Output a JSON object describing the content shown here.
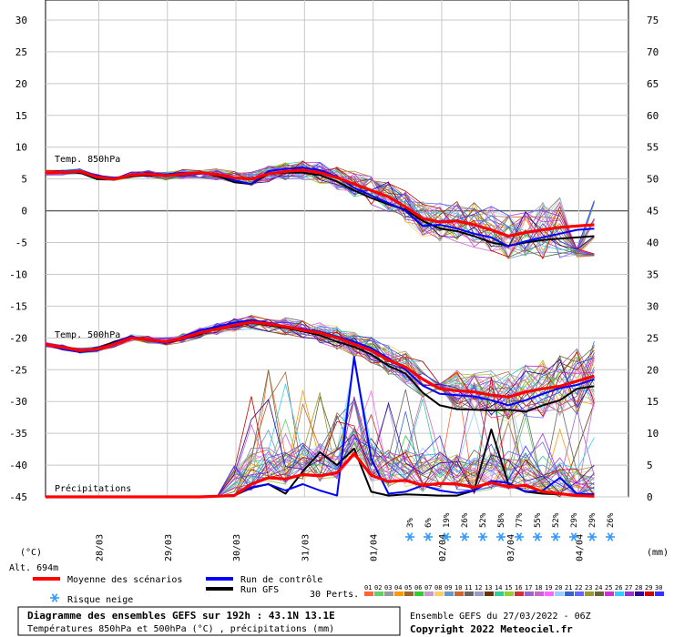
{
  "chart_data": {
    "type": "line",
    "title": "Diagramme des ensembles GEFS sur 192h : 43.1N 13.1E",
    "subtitle": "Températures 850hPa et 500hPa (°C) , précipitations (mm)",
    "left_axis": {
      "unit": "(°C)",
      "range": [
        -45,
        30
      ],
      "ticks": [
        30,
        25,
        20,
        15,
        10,
        5,
        0,
        -5,
        -10,
        -15,
        -20,
        -25,
        -30,
        -35,
        -40,
        -45
      ]
    },
    "right_axis": {
      "unit": "(mm)",
      "range": [
        0,
        75
      ],
      "ticks": [
        75,
        70,
        65,
        60,
        55,
        50,
        45,
        40,
        35,
        30,
        25,
        20,
        15,
        10,
        5,
        0
      ]
    },
    "altitude_label": "Alt. 694m",
    "x_labels": [
      "28/03",
      "29/03",
      "30/03",
      "31/03",
      "01/04",
      "02/04",
      "03/04",
      "04/04"
    ],
    "panel_labels": {
      "t850": "Temp. 850hPa",
      "t500": "Temp. 500hPa",
      "precip": "Précipitations"
    },
    "x_steps": [
      0,
      6,
      12,
      18,
      24,
      30,
      36,
      42,
      48,
      54,
      60,
      66,
      72,
      78,
      84,
      90,
      96,
      102,
      108,
      114,
      120,
      126,
      132,
      138,
      144,
      150,
      156,
      162,
      168,
      174,
      180,
      186,
      192
    ],
    "series": [
      {
        "name": "Moyenne des scénarios",
        "key": "t850_mean",
        "color": "#ff0000",
        "values": [
          6,
          6,
          6.2,
          5.3,
          5.0,
          5.6,
          5.8,
          5.5,
          5.8,
          6.0,
          5.7,
          5.2,
          5.0,
          5.8,
          6.2,
          6.4,
          6.0,
          5.2,
          4.2,
          3.2,
          2.2,
          0.6,
          -1.2,
          -1.8,
          -1.6,
          -2.2,
          -3.0,
          -4.0,
          -3.4,
          -3.0,
          -2.6,
          -2.4,
          -2.2
        ]
      },
      {
        "name": "Run de contrôle",
        "key": "t850_ctrl",
        "color": "#0000ff",
        "values": [
          6,
          6,
          6.2,
          5.5,
          5.2,
          5.5,
          5.9,
          5.7,
          6.0,
          5.9,
          5.8,
          4.8,
          4.2,
          6.2,
          6.6,
          6.8,
          6.4,
          5.4,
          3.6,
          2.4,
          1.2,
          0.0,
          -2.4,
          -2.2,
          -2.8,
          -3.6,
          -4.2,
          -5.6,
          -4.8,
          -4.2,
          -3.6,
          -3.0,
          -2.8
        ]
      },
      {
        "name": "Run GFS",
        "key": "t850_gfs",
        "color": "#000000",
        "values": [
          6,
          6,
          6.0,
          5.0,
          5.0,
          5.4,
          5.6,
          5.5,
          5.9,
          6.0,
          5.5,
          4.5,
          4.2,
          5.8,
          6.0,
          6.0,
          5.6,
          4.6,
          3.2,
          2.0,
          1.0,
          0.2,
          -1.6,
          -2.8,
          -3.2,
          -4.0,
          -5.0,
          -5.5,
          -5.0,
          -4.6,
          -4.4,
          -4.2,
          -4.0
        ]
      },
      {
        "name": "Moyenne des scénarios",
        "key": "t500_mean",
        "color": "#ff0000",
        "values": [
          -21,
          -21.5,
          -22,
          -21.8,
          -21,
          -20,
          -20.3,
          -20.6,
          -20.0,
          -19.2,
          -18.6,
          -18.0,
          -17.5,
          -17.8,
          -18.2,
          -18.8,
          -19.2,
          -20.0,
          -21.0,
          -22.0,
          -23.5,
          -24.6,
          -26.5,
          -28.0,
          -28.3,
          -28.5,
          -29.0,
          -29.3,
          -28.5,
          -28.0,
          -27.6,
          -26.8,
          -26.0
        ]
      },
      {
        "name": "Run de contrôle",
        "key": "t500_ctrl",
        "color": "#0000ff",
        "values": [
          -21,
          -21.8,
          -22.2,
          -22,
          -20.8,
          -19.8,
          -20.4,
          -20.8,
          -19.8,
          -18.8,
          -18.2,
          -17.6,
          -17.2,
          -17.6,
          -18.2,
          -18.6,
          -19.0,
          -19.8,
          -20.6,
          -21.6,
          -23.2,
          -25.0,
          -27.5,
          -28.8,
          -29.0,
          -29.2,
          -29.8,
          -30.6,
          -29.8,
          -28.8,
          -27.9,
          -27.4,
          -26.5
        ]
      },
      {
        "name": "Run GFS",
        "key": "t500_gfs",
        "color": "#000000",
        "values": [
          -21,
          -21.6,
          -22,
          -21.8,
          -20.6,
          -20.0,
          -20.2,
          -20.6,
          -20.0,
          -19.4,
          -18.4,
          -18.2,
          -17.6,
          -18.0,
          -18.4,
          -19.0,
          -19.6,
          -20.6,
          -21.4,
          -22.6,
          -24.4,
          -25.6,
          -28.6,
          -30.6,
          -31.2,
          -31.3,
          -31.4,
          -31.3,
          -31.6,
          -30.6,
          -29.8,
          -28.0,
          -27.6
        ]
      },
      {
        "name": "Moyenne des scénarios",
        "key": "precip_mean",
        "color": "#ff0000",
        "values": [
          0,
          0,
          0,
          0,
          0,
          0,
          0,
          0,
          0,
          0,
          0.1,
          0.2,
          2,
          3,
          2.8,
          3.5,
          3.3,
          3.8,
          6.8,
          3.4,
          2.4,
          2.6,
          1.8,
          2.1,
          2.0,
          1.5,
          2.2,
          1.6,
          1.8,
          0.8,
          0.5,
          0.2,
          0.1
        ]
      },
      {
        "name": "Run de contrôle",
        "key": "precip_ctrl",
        "color": "#0000ff",
        "values": [
          0,
          0,
          0,
          0,
          0,
          0,
          0,
          0,
          0,
          0,
          0.1,
          0.3,
          1.5,
          2.0,
          1.0,
          2.0,
          1.0,
          0.2,
          22.0,
          6.0,
          0.5,
          0.8,
          1.8,
          1.0,
          0.6,
          1.0,
          2.5,
          2.2,
          0.8,
          1.0,
          3.0,
          0.5,
          0.4
        ]
      },
      {
        "name": "Run GFS",
        "key": "precip_gfs",
        "color": "#000000",
        "values": [
          0,
          0,
          0,
          0,
          0,
          0,
          0,
          0,
          0,
          0,
          0.1,
          0.2,
          1.4,
          2.0,
          0.5,
          4.0,
          7.0,
          5.0,
          7.6,
          0.8,
          0.2,
          0.4,
          0.3,
          0.2,
          0.2,
          1.0,
          10.6,
          2.0,
          0.8,
          0.5,
          0.4,
          0.3,
          0.4
        ]
      }
    ],
    "snow_risk": [
      {
        "step": 138,
        "label": "3%"
      },
      {
        "step": 144,
        "label": "6%"
      },
      {
        "step": 150,
        "label": "19%"
      },
      {
        "step": 156,
        "label": "26%"
      },
      {
        "step": 162,
        "label": "52%"
      },
      {
        "step": 168,
        "label": "58%"
      },
      {
        "step": 174,
        "label": "77%"
      },
      {
        "step": 180,
        "label": "55%"
      },
      {
        "step": 186,
        "label": "52%"
      },
      {
        "step": 192,
        "label": "29%"
      },
      {
        "step": 198,
        "label": "29%"
      },
      {
        "step": 204,
        "label": "26%"
      }
    ]
  },
  "legend": {
    "mean": "Moyenne des scénarios",
    "control": "Run de contrôle",
    "gfs": "Run GFS",
    "snow": "Risque neige",
    "perts": "30 Perts.",
    "pert_numbers": [
      "01",
      "02",
      "03",
      "04",
      "05",
      "06",
      "07",
      "08",
      "09",
      "10",
      "11",
      "12",
      "13",
      "14",
      "15",
      "16",
      "17",
      "18",
      "19",
      "20",
      "21",
      "22",
      "23",
      "24",
      "25",
      "26",
      "27",
      "28",
      "29",
      "30"
    ],
    "pert_colors": [
      "#ff6633",
      "#66cc66",
      "#999999",
      "#ff9900",
      "#996633",
      "#33cc33",
      "#cc99cc",
      "#ffcc66",
      "#6699cc",
      "#cc6633",
      "#666666",
      "#9999cc",
      "#663300",
      "#33cc99",
      "#99cc33",
      "#cc3333",
      "#9966cc",
      "#cc66cc",
      "#ff66ff",
      "#99ccff",
      "#3366cc",
      "#6666ff",
      "#999933",
      "#666633",
      "#cc33cc",
      "#33ccff",
      "#9933cc",
      "#330099",
      "#cc0000",
      "#3333ff"
    ]
  },
  "footer": {
    "title": "Diagramme des ensembles GEFS sur 192h : 43.1N 13.1E",
    "subtitle": "Températures 850hPa et 500hPa (°C) , précipitations (mm)",
    "ensemble": "Ensemble GEFS du 27/03/2022 - 06Z",
    "copyright": "Copyright 2022 Meteociel.fr"
  }
}
